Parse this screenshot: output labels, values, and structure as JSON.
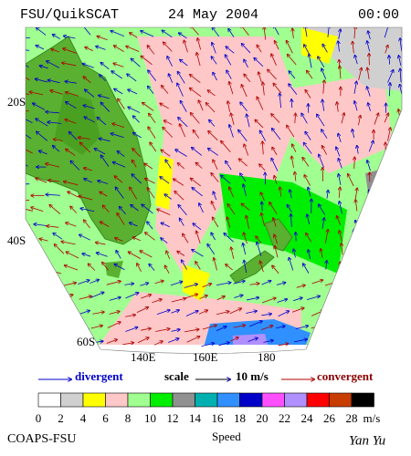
{
  "header": {
    "left": "FSU/QuikSCAT",
    "center": "24 May 2004",
    "right": "00:00"
  },
  "map": {
    "lat_labels": [
      "20S",
      "40S",
      "60S"
    ],
    "lon_labels": [
      "140E",
      "160E",
      "180"
    ]
  },
  "legend": {
    "divergent": "divergent",
    "scale": "scale",
    "scale_value": "10 m/s",
    "convergent": "convergent"
  },
  "colorbar": {
    "ticks": [
      0,
      2,
      4,
      6,
      8,
      10,
      12,
      14,
      16,
      18,
      20,
      22,
      24,
      26,
      28
    ],
    "unit": "m/s",
    "colors": [
      "#ffffff",
      "#d0d0d0",
      "#ffff00",
      "#ffc8c8",
      "#a0ff90",
      "#00ee00",
      "#909090",
      "#00b0b0",
      "#3090ff",
      "#0000c8",
      "#ff50ff",
      "#b090ff",
      "#ff0000",
      "#c83c00",
      "#000000"
    ],
    "label": "Speed"
  },
  "footer": {
    "left": "COAPS-FSU",
    "right": "Yan Yu"
  }
}
